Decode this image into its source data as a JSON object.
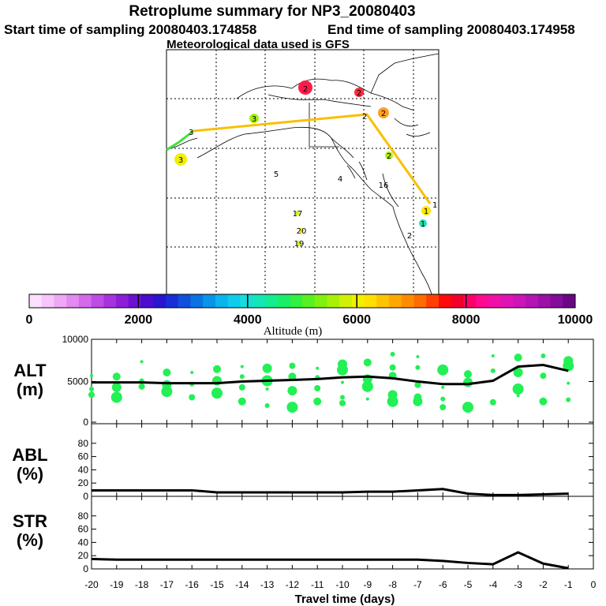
{
  "titles": {
    "main": "Retroplume summary for NP3_20080403",
    "start": "Start time of sampling 20080403.174858",
    "end": "End time of sampling 20080403.174958",
    "met": "Meteorological data used is GFS"
  },
  "colorbar": {
    "ticks": [
      "0",
      "2000",
      "4000",
      "6000",
      "8000",
      "10000"
    ],
    "label": "Altitude (m)",
    "colors": [
      "#fde0ff",
      "#f7c4fb",
      "#eea8f5",
      "#e28aef",
      "#d36ae9",
      "#bf4ce4",
      "#a633de",
      "#8c1ed8",
      "#6c10d3",
      "#4a0ccf",
      "#2a14cf",
      "#1a2ed6",
      "#1050dd",
      "#0a72e3",
      "#0894e8",
      "#0ab4ec",
      "#10ccec",
      "#16dcdc",
      "#14e6b8",
      "#14ec90",
      "#18ef68",
      "#30f040",
      "#58f020",
      "#80f010",
      "#a8f008",
      "#d0f008",
      "#f0f000",
      "#ffe000",
      "#ffc400",
      "#ffa800",
      "#ff8c00",
      "#ff6c00",
      "#ff4000",
      "#ff0a0a",
      "#f0002a",
      "#ff0066",
      "#ff0a90",
      "#f010a8",
      "#e014b4",
      "#cc14b8",
      "#b414b4",
      "#9c10a8",
      "#840c98",
      "#6a0884"
    ]
  },
  "map": {
    "trajectory_labels": [
      "2",
      "2",
      "3",
      "1",
      "1"
    ],
    "cluster_labels": [
      {
        "t": "2",
        "c": "#ff1a4a"
      },
      {
        "t": "2",
        "c": "#ff2a40"
      },
      {
        "t": "2",
        "c": "#ffa020"
      },
      {
        "t": "3",
        "c": "#a8f010"
      },
      {
        "t": "3",
        "c": "#f0f000"
      },
      {
        "t": "2",
        "c": "#a8f010"
      },
      {
        "t": "5",
        "c": "#ffffff"
      },
      {
        "t": "4",
        "c": "#ffffff"
      },
      {
        "t": "16",
        "c": "#ffffff"
      },
      {
        "t": "1",
        "c": "#ffe800"
      },
      {
        "t": "1",
        "c": "#20e0b0"
      },
      {
        "t": "2",
        "c": "#ffffff"
      },
      {
        "t": "17",
        "c": "#ffffff"
      },
      {
        "t": "20",
        "c": "#ffffff"
      },
      {
        "t": "19",
        "c": "#ffffff"
      }
    ]
  },
  "panels": {
    "alt": {
      "label_top": "ALT",
      "label_bottom": "(m)",
      "yticks": [
        "0",
        "5000",
        "10000"
      ]
    },
    "abl": {
      "label_top": "ABL",
      "label_bottom": "(%)",
      "yticks": [
        "0",
        "20",
        "40",
        "60",
        "80"
      ]
    },
    "str": {
      "label_top": "STR",
      "label_bottom": "(%)",
      "yticks": [
        "0",
        "20",
        "40",
        "60",
        "80"
      ]
    }
  },
  "xaxis": {
    "label": "Travel time (days)",
    "ticks": [
      "-20",
      "-19",
      "-18",
      "-17",
      "-16",
      "-15",
      "-14",
      "-13",
      "-12",
      "-11",
      "-10",
      "-9",
      "-8",
      "-7",
      "-6",
      "-5",
      "-4",
      "-3",
      "-2",
      "-1",
      "0"
    ]
  },
  "chart_data": {
    "type": "line",
    "x": [
      -20,
      -19,
      -18,
      -17,
      -16,
      -15,
      -14,
      -13,
      -12,
      -11,
      -10,
      -9,
      -8,
      -7,
      -6,
      -5,
      -4,
      -3,
      -2,
      -1
    ],
    "xlabel": "Travel time (days)",
    "xlim": [
      -20,
      0
    ],
    "series": [
      {
        "name": "ALT",
        "ylabel": "(m)",
        "ylim": [
          0,
          10000
        ],
        "values": [
          4800,
          4800,
          4800,
          4700,
          4700,
          4700,
          4900,
          5000,
          5100,
          5200,
          5400,
          5500,
          5300,
          4900,
          4600,
          4600,
          5000,
          6700,
          6900,
          6200
        ]
      },
      {
        "name": "ABL",
        "ylabel": "(%)",
        "ylim": [
          0,
          100
        ],
        "values": [
          9,
          9,
          9,
          9,
          9,
          6,
          6,
          6,
          6,
          6,
          6,
          7,
          7,
          9,
          11,
          4,
          2,
          2,
          3,
          4
        ]
      },
      {
        "name": "STR",
        "ylabel": "(%)",
        "ylim": [
          0,
          100
        ],
        "values": [
          15,
          14,
          14,
          14,
          14,
          14,
          14,
          14,
          14,
          14,
          14,
          14,
          14,
          14,
          12,
          9,
          7,
          25,
          8,
          1
        ]
      }
    ],
    "alt_scatter": [
      [
        -20,
        5600
      ],
      [
        -20,
        4000
      ],
      [
        -20,
        3300
      ],
      [
        -19,
        5500
      ],
      [
        -19,
        4200
      ],
      [
        -19,
        3000
      ],
      [
        -18,
        7300
      ],
      [
        -18,
        5000
      ],
      [
        -18,
        4300
      ],
      [
        -17,
        6000
      ],
      [
        -17,
        4500
      ],
      [
        -17,
        3700
      ],
      [
        -16,
        6000
      ],
      [
        -16,
        4600
      ],
      [
        -16,
        3000
      ],
      [
        -15,
        6400
      ],
      [
        -15,
        5000
      ],
      [
        -15,
        3500
      ],
      [
        -14,
        6700
      ],
      [
        -14,
        5500
      ],
      [
        -14,
        4200
      ],
      [
        -14,
        2500
      ],
      [
        -13,
        6500
      ],
      [
        -13,
        5000
      ],
      [
        -13,
        4000
      ],
      [
        -13,
        2000
      ],
      [
        -12,
        6800
      ],
      [
        -12,
        5500
      ],
      [
        -12,
        3800
      ],
      [
        -12,
        1800
      ],
      [
        -11,
        6500
      ],
      [
        -11,
        5400
      ],
      [
        -11,
        4100
      ],
      [
        -11,
        2500
      ],
      [
        -10,
        7000
      ],
      [
        -10,
        6300
      ],
      [
        -10,
        4800
      ],
      [
        -10,
        3000
      ],
      [
        -10,
        2300
      ],
      [
        -9,
        7200
      ],
      [
        -9,
        5200
      ],
      [
        -9,
        4300
      ],
      [
        -9,
        2800
      ],
      [
        -8,
        8200
      ],
      [
        -8,
        6600
      ],
      [
        -8,
        5600
      ],
      [
        -8,
        3300
      ],
      [
        -8,
        2500
      ],
      [
        -7,
        7900
      ],
      [
        -7,
        6600
      ],
      [
        -7,
        4500
      ],
      [
        -7,
        3000
      ],
      [
        -7,
        2500
      ],
      [
        -6,
        6300
      ],
      [
        -6,
        4200
      ],
      [
        -6,
        2800
      ],
      [
        -6,
        1800
      ],
      [
        -5,
        5800
      ],
      [
        -5,
        4800
      ],
      [
        -5,
        1800
      ],
      [
        -4,
        8000
      ],
      [
        -4,
        6200
      ],
      [
        -4,
        2400
      ],
      [
        -3,
        7800
      ],
      [
        -3,
        6000
      ],
      [
        -3,
        4000
      ],
      [
        -3,
        3200
      ],
      [
        -2,
        8000
      ],
      [
        -2,
        5600
      ],
      [
        -2,
        2500
      ],
      [
        -1,
        7400
      ],
      [
        -1,
        6800
      ],
      [
        -1,
        4700
      ],
      [
        -1,
        2700
      ]
    ]
  }
}
